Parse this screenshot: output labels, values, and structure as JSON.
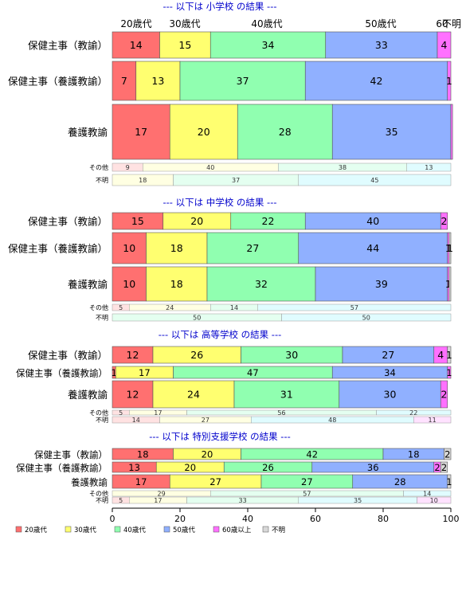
{
  "chart_data": {
    "type": "bar",
    "orientation": "horizontal",
    "stacked": true,
    "normalized": true,
    "xlim": [
      0,
      100
    ],
    "x_ticks": [
      "0",
      "20",
      "40",
      "60",
      "80",
      "100"
    ],
    "age_top_labels": [
      "20歳代",
      "30歳代",
      "40歳代",
      "50歳代",
      "60",
      "不明"
    ],
    "legend": {
      "placement": "bottom",
      "items": [
        {
          "label": "20歳代",
          "color": "#ff7070"
        },
        {
          "label": "30歳代",
          "color": "#ffff70"
        },
        {
          "label": "40歳代",
          "color": "#90ffb0"
        },
        {
          "label": "50歳代",
          "color": "#90b0ff"
        },
        {
          "label": "60歳以上",
          "color": "#ff70ff"
        },
        {
          "label": "不明",
          "color": "#d8d8d8"
        }
      ]
    },
    "title_color": "#0000cc",
    "panels": [
      {
        "title": "--- 以下は 小学校 の結果 ---",
        "rows": [
          {
            "label": "保健主事（教諭）",
            "values": [
              14,
              15,
              34,
              33,
              4,
              0
            ],
            "labels": [
              "14",
              "15",
              "34",
              "33",
              "4",
              ""
            ]
          },
          {
            "label": "保健主事（養護教諭）",
            "values": [
              7,
              13,
              37,
              42,
              1,
              0
            ],
            "labels": [
              "7",
              "13",
              "37",
              "42",
              "1",
              ""
            ]
          },
          {
            "label": "養護教諭",
            "values": [
              17,
              20,
              28,
              35,
              0.5,
              0
            ],
            "labels": [
              "17",
              "20",
              "28",
              "35",
              "",
              ""
            ]
          },
          {
            "label": "その他",
            "values": [
              9,
              40,
              38,
              13,
              0,
              0
            ],
            "labels": [
              "9",
              "40",
              "38",
              "13",
              "",
              ""
            ],
            "small": true
          },
          {
            "label": "不明",
            "values": [
              0,
              18,
              37,
              45,
              0,
              0
            ],
            "labels": [
              "",
              "18",
              "37",
              "45",
              "",
              ""
            ],
            "small": true
          }
        ]
      },
      {
        "title": "--- 以下は 中学校 の結果 ---",
        "rows": [
          {
            "label": "保健主事（教諭）",
            "values": [
              15,
              20,
              22,
              40,
              2,
              0
            ],
            "labels": [
              "15",
              "20",
              "22",
              "40",
              "2",
              ""
            ]
          },
          {
            "label": "保健主事（養護教諭）",
            "values": [
              10,
              18,
              27,
              44,
              0.5,
              0.5
            ],
            "labels": [
              "10",
              "18",
              "27",
              "44",
              "1",
              "1"
            ]
          },
          {
            "label": "養護教諭",
            "values": [
              10,
              18,
              32,
              39,
              0.5,
              0.5
            ],
            "labels": [
              "10",
              "18",
              "32",
              "39",
              "1",
              ""
            ]
          },
          {
            "label": "その他",
            "values": [
              5,
              24,
              14,
              57,
              0,
              0
            ],
            "labels": [
              "5",
              "24",
              "14",
              "57",
              "",
              ""
            ],
            "small": true
          },
          {
            "label": "不明",
            "values": [
              0,
              0,
              50,
              50,
              0,
              0
            ],
            "labels": [
              "",
              "",
              "50",
              "50",
              "",
              ""
            ],
            "small": true
          }
        ]
      },
      {
        "title": "--- 以下は 高等学校 の結果 ---",
        "rows": [
          {
            "label": "保健主事（教諭）",
            "values": [
              12,
              26,
              30,
              27,
              4,
              1
            ],
            "labels": [
              "12",
              "26",
              "30",
              "27",
              "4",
              "1"
            ]
          },
          {
            "label": "保健主事（養護教諭）",
            "values": [
              1,
              17,
              47,
              34,
              1,
              0
            ],
            "labels": [
              "1",
              "17",
              "47",
              "34",
              "1",
              ""
            ]
          },
          {
            "label": "養護教諭",
            "values": [
              12,
              24,
              31,
              30,
              2,
              0
            ],
            "labels": [
              "12",
              "24",
              "31",
              "30",
              "2",
              ""
            ]
          },
          {
            "label": "その他",
            "values": [
              5,
              17,
              56,
              22,
              0,
              0
            ],
            "labels": [
              "5",
              "17",
              "56",
              "22",
              "",
              ""
            ],
            "small": true
          },
          {
            "label": "不明",
            "values": [
              14,
              27,
              0,
              48,
              11,
              0
            ],
            "labels": [
              "14",
              "27",
              "",
              "48",
              "11",
              ""
            ],
            "small": true
          }
        ]
      },
      {
        "title": "--- 以下は 特別支援学校 の結果 ---",
        "rows": [
          {
            "label": "保健主事（教諭）",
            "values": [
              18,
              20,
              42,
              18,
              0,
              2
            ],
            "labels": [
              "18",
              "20",
              "42",
              "18",
              "",
              "2"
            ]
          },
          {
            "label": "保健主事（養護教諭）",
            "values": [
              13,
              20,
              26,
              36,
              2,
              2
            ],
            "labels": [
              "13",
              "20",
              "26",
              "36",
              "2",
              "2"
            ]
          },
          {
            "label": "養護教諭",
            "values": [
              17,
              27,
              27,
              28,
              0,
              1
            ],
            "labels": [
              "17",
              "27",
              "27",
              "28",
              "",
              "1"
            ]
          },
          {
            "label": "その他",
            "values": [
              0,
              29,
              57,
              14,
              0,
              0
            ],
            "labels": [
              "",
              "29",
              "57",
              "14",
              "",
              ""
            ],
            "small": true
          },
          {
            "label": "不明",
            "values": [
              5,
              17,
              33,
              35,
              10,
              0
            ],
            "labels": [
              "5",
              "17",
              "33",
              "35",
              "10",
              ""
            ],
            "small": true
          }
        ]
      }
    ]
  }
}
